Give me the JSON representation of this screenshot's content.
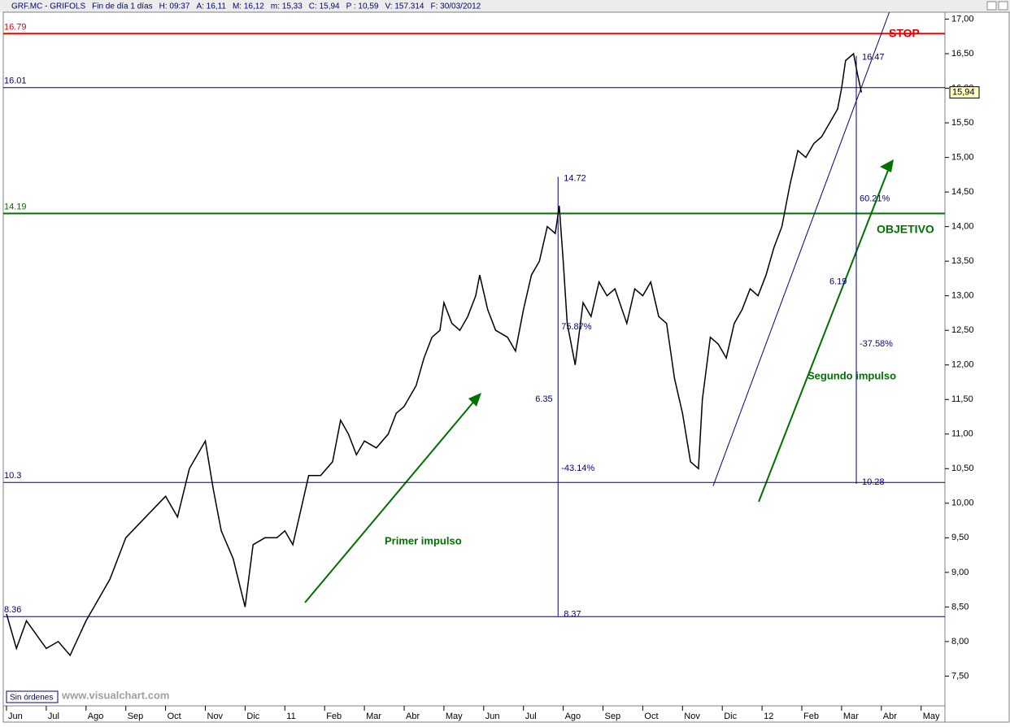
{
  "chart_data": {
    "type": "line",
    "header": [
      "GRF.MC - GRIFOLS",
      "Fin de día 1 días",
      "H: 09:37",
      "A: 16,11",
      "M: 16,12",
      "m: 15,33",
      "C: 15,94",
      "P : 10,59",
      "V: 157.314",
      "F: 30/03/2012"
    ],
    "xlim": [
      0,
      23.6
    ],
    "xticks": [
      {
        "value": 0,
        "label": "Jun"
      },
      {
        "value": 1,
        "label": "Jul"
      },
      {
        "value": 2,
        "label": "Ago"
      },
      {
        "value": 3,
        "label": "Sep"
      },
      {
        "value": 4,
        "label": "Oct"
      },
      {
        "value": 5,
        "label": "Nov"
      },
      {
        "value": 6,
        "label": "Dic"
      },
      {
        "value": 7,
        "label": "11"
      },
      {
        "value": 8,
        "label": "Feb"
      },
      {
        "value": 9,
        "label": "Mar"
      },
      {
        "value": 10,
        "label": "Abr"
      },
      {
        "value": 11,
        "label": "May"
      },
      {
        "value": 12,
        "label": "Jun"
      },
      {
        "value": 13,
        "label": "Jul"
      },
      {
        "value": 14,
        "label": "Ago"
      },
      {
        "value": 15,
        "label": "Sep"
      },
      {
        "value": 16,
        "label": "Oct"
      },
      {
        "value": 17,
        "label": "Nov"
      },
      {
        "value": 18,
        "label": "Dic"
      },
      {
        "value": 19,
        "label": "12"
      },
      {
        "value": 20,
        "label": "Feb"
      },
      {
        "value": 21,
        "label": "Mar"
      },
      {
        "value": 22,
        "label": "Abr"
      },
      {
        "value": 23,
        "label": "May"
      }
    ],
    "ylim": [
      7.07,
      17.1
    ],
    "yticks": [
      {
        "value": 7.5,
        "label": "7,50"
      },
      {
        "value": 8,
        "label": "8,00"
      },
      {
        "value": 8.5,
        "label": "8,50"
      },
      {
        "value": 9,
        "label": "9,00"
      },
      {
        "value": 9.5,
        "label": "9,50"
      },
      {
        "value": 10,
        "label": "10,00"
      },
      {
        "value": 10.5,
        "label": "10,50"
      },
      {
        "value": 11,
        "label": "11,00"
      },
      {
        "value": 11.5,
        "label": "11,50"
      },
      {
        "value": 12,
        "label": "12,00"
      },
      {
        "value": 12.5,
        "label": "12,50"
      },
      {
        "value": 13,
        "label": "13,00"
      },
      {
        "value": 13.5,
        "label": "13,50"
      },
      {
        "value": 14,
        "label": "14,00"
      },
      {
        "value": 14.5,
        "label": "14,50"
      },
      {
        "value": 15,
        "label": "15,00"
      },
      {
        "value": 15.5,
        "label": "15,50"
      },
      {
        "value": 16,
        "label": "16,00"
      },
      {
        "value": 16.5,
        "label": "16,50"
      },
      {
        "value": 17,
        "label": "17,00"
      }
    ],
    "series": [
      {
        "color": "#000000",
        "x": [
          0,
          0.25,
          0.5,
          1,
          1.3,
          1.6,
          2,
          2.3,
          2.6,
          3,
          3.5,
          4,
          4.3,
          4.6,
          4.9,
          5,
          5.2,
          5.4,
          5.7,
          6,
          6.2,
          6.5,
          6.8,
          7,
          7.2,
          7.4,
          7.6,
          7.9,
          8.2,
          8.4,
          8.6,
          8.8,
          9,
          9.3,
          9.6,
          9.8,
          10,
          10.3,
          10.5,
          10.7,
          10.9,
          11,
          11.2,
          11.4,
          11.6,
          11.8,
          11.9,
          12.1,
          12.3,
          12.6,
          12.8,
          13,
          13.2,
          13.4,
          13.6,
          13.8,
          13.9,
          14,
          14.1,
          14.3,
          14.5,
          14.7,
          14.9,
          15.1,
          15.3,
          15.6,
          15.8,
          16,
          16.2,
          16.4,
          16.6,
          16.8,
          17,
          17.2,
          17.4,
          17.5,
          17.7,
          17.9,
          18.1,
          18.3,
          18.5,
          18.7,
          18.9,
          19.1,
          19.3,
          19.5,
          19.7,
          19.9,
          20.1,
          20.3,
          20.5,
          20.7,
          20.9,
          21,
          21.1,
          21.3,
          21.4,
          21.5
        ],
        "values": [
          8.4,
          7.9,
          8.3,
          7.9,
          8.0,
          7.8,
          8.3,
          8.6,
          8.9,
          9.5,
          9.8,
          10.1,
          9.8,
          10.5,
          10.8,
          10.9,
          10.2,
          9.6,
          9.2,
          8.5,
          9.4,
          9.5,
          9.5,
          9.6,
          9.4,
          9.9,
          10.4,
          10.4,
          10.6,
          11.2,
          11.0,
          10.7,
          10.9,
          10.8,
          11.0,
          11.3,
          11.4,
          11.7,
          12.1,
          12.4,
          12.5,
          12.9,
          12.6,
          12.5,
          12.7,
          13.0,
          13.3,
          12.8,
          12.5,
          12.4,
          12.2,
          12.8,
          13.3,
          13.5,
          14.0,
          13.9,
          14.3,
          13.5,
          12.6,
          12.0,
          12.9,
          12.7,
          13.2,
          13.0,
          13.1,
          12.6,
          13.1,
          13.0,
          13.2,
          12.7,
          12.6,
          11.8,
          11.3,
          10.6,
          10.5,
          11.5,
          12.4,
          12.3,
          12.1,
          12.6,
          12.8,
          13.1,
          13.0,
          13.3,
          13.7,
          14.0,
          14.6,
          15.1,
          15.0,
          15.2,
          15.3,
          15.5,
          15.7,
          16.0,
          16.4,
          16.5,
          16.2,
          15.94
        ]
      }
    ],
    "last_price": {
      "value": 15.94,
      "label": "15,94"
    },
    "levels": [
      {
        "value": 16.79,
        "color": "#e00000"
      },
      {
        "value": 16.01,
        "color": "#000080"
      },
      {
        "value": 14.19,
        "color": "#007000"
      },
      {
        "value": 10.3,
        "color": "#000080"
      },
      {
        "value": 8.36,
        "color": "#000080"
      }
    ],
    "trendline": {
      "x": [
        17.77,
        22.2
      ],
      "y": [
        10.25,
        17.1
      ],
      "color": "#000080"
    },
    "measures": [
      {
        "x": 13.87,
        "low": 8.37,
        "high": 14.72,
        "diff": 6.35,
        "down": {
          "value": -43.14,
          "label": "-43.14%"
        },
        "up": {
          "value": 75.87,
          "label": "75.87%"
        }
      },
      {
        "x": 21.37,
        "low": 10.28,
        "high": 16.47,
        "diff": 6.19,
        "down": {
          "value": -37.58,
          "label": "-37.58%"
        },
        "up": {
          "value": 60.21,
          "label": "60.21%"
        }
      }
    ],
    "annotations": [
      "STOP",
      "OBJETIVO",
      "Primer impulso",
      "Segundo impulso"
    ],
    "status": "Sin órdenes",
    "watermark": "www.visualchart.com"
  }
}
